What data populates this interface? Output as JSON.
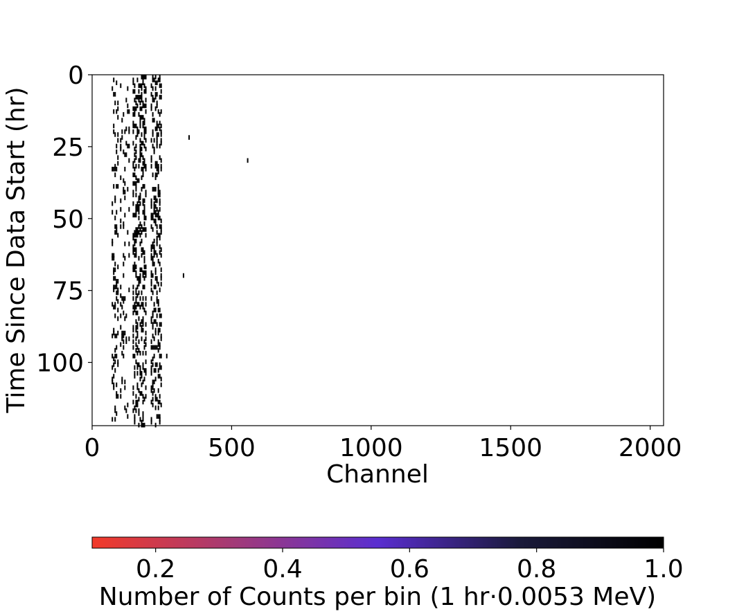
{
  "chart_data": {
    "type": "heatmap",
    "title": "",
    "xlabel": "Channel",
    "ylabel": "Time Since Data Start (hr)",
    "xlim": [
      0,
      2048
    ],
    "ylim": [
      122,
      0
    ],
    "y_inverted": true,
    "grid": false,
    "x_ticks": [
      0,
      500,
      1000,
      1500,
      2000
    ],
    "y_ticks": [
      0,
      25,
      50,
      75,
      100
    ],
    "x_tick_labels": [
      "0",
      "500",
      "1000",
      "1500",
      "2000"
    ],
    "y_tick_labels": [
      "0",
      "25",
      "50",
      "75",
      "100"
    ],
    "colorbar": {
      "label": "Number of Counts per bin (1 hr·0.0053 MeV)",
      "range": [
        0.1,
        1.0
      ],
      "ticks": [
        0.2,
        0.4,
        0.6,
        0.8,
        1.0
      ],
      "tick_labels": [
        "0.2",
        "0.4",
        "0.6",
        "0.8",
        "1.0"
      ],
      "colormap": [
        "#f23a29",
        "#a23a78",
        "#5a2ed0",
        "#1a1a3a",
        "#000000"
      ],
      "orientation": "horizontal"
    },
    "counts_value": 1.0,
    "count_color": "#000000",
    "bands": [
      {
        "channel_range": [
          70,
          90
        ],
        "density": 0.35
      },
      {
        "channel_range": [
          100,
          130
        ],
        "density": 0.15
      },
      {
        "channel_range": [
          145,
          190
        ],
        "density": 0.55
      },
      {
        "channel_range": [
          210,
          245
        ],
        "density": 0.5
      }
    ],
    "isolated_counts": [
      {
        "channel": 345,
        "time_hr": 21
      },
      {
        "channel": 555,
        "time_hr": 29
      },
      {
        "channel": 325,
        "time_hr": 69
      },
      {
        "channel": 265,
        "time_hr": 97
      }
    ],
    "time_bins": 122
  }
}
